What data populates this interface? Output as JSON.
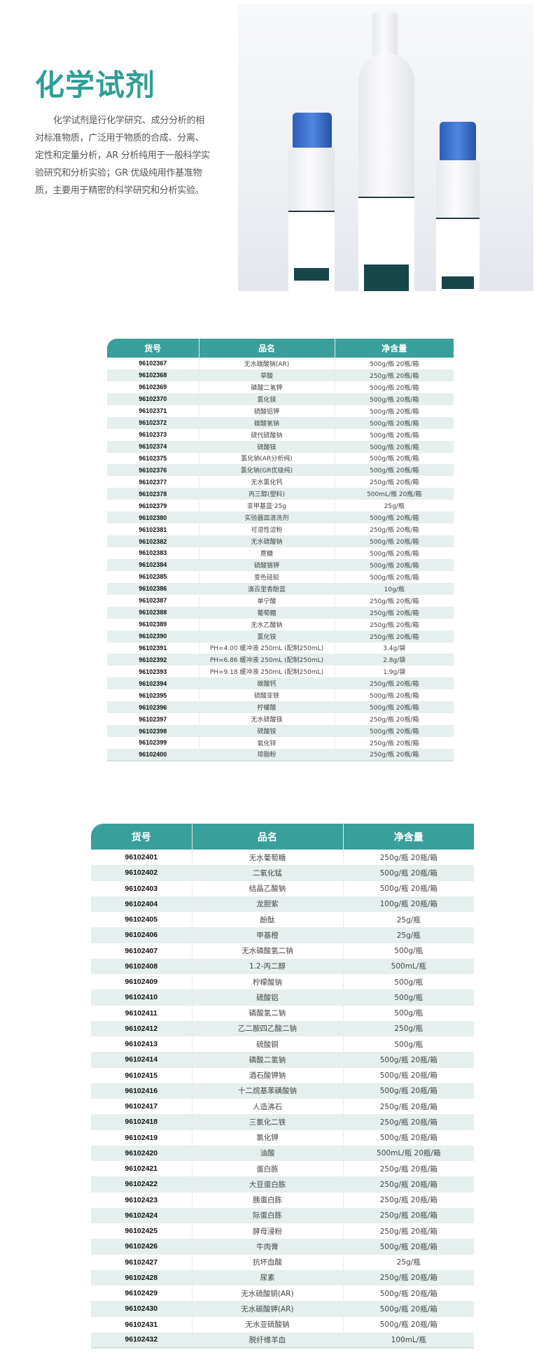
{
  "hero": {
    "title": "化学试剂",
    "description": "化学试剂是行化学研究、成分分析的相对标准物质，广泛用于物质的合成、分离、定性和定量分析，AR 分析纯用于一般科学实验研究和分析实验；GR 优级纯用作基准物质，主要用于精密的科学研究和分析实验。",
    "image": "reagent-bottles-photo",
    "colors": {
      "accent": "#389f9b",
      "title": "#2f9e97",
      "cap": "#3a6fcf",
      "row_alt": "#e5efee"
    }
  },
  "table1": {
    "headers": [
      "货号",
      "品名",
      "净含量"
    ],
    "rows": [
      [
        "96102367",
        "无水碳酸钠(AR)",
        "500g/瓶  20瓶/箱"
      ],
      [
        "96102368",
        "草酸",
        "250g/瓶  20瓶/箱"
      ],
      [
        "96102369",
        "磷酸二氢钾",
        "500g/瓶  20瓶/箱"
      ],
      [
        "96102370",
        "氯化镁",
        "500g/瓶  20瓶/箱"
      ],
      [
        "96102371",
        "硫酸铝钾",
        "500g/瓶  20瓶/箱"
      ],
      [
        "96102372",
        "碳酸氢钠",
        "500g/瓶  20瓶/箱"
      ],
      [
        "96102373",
        "硫代硫酸钠",
        "500g/瓶  20瓶/箱"
      ],
      [
        "96102374",
        "硫酸镁",
        "500g/瓶  20瓶/箱"
      ],
      [
        "96102375",
        "氯化钠(AR分析纯)",
        "500g/瓶  20瓶/箱"
      ],
      [
        "96102376",
        "氯化钠(GR优级纯)",
        "500g/瓶  20瓶/箱"
      ],
      [
        "96102377",
        "无水氯化钙",
        "250g/瓶  20瓶/箱"
      ],
      [
        "96102378",
        "丙三醇(塑料)",
        "500mL/瓶  20瓶/箱"
      ],
      [
        "96102379",
        "亚甲基蓝 25g",
        "25g/瓶"
      ],
      [
        "96102380",
        "实验器皿清洗剂",
        "500g/瓶  20瓶/箱"
      ],
      [
        "96102381",
        "可溶性淀粉",
        "250g/瓶  20瓶/箱"
      ],
      [
        "96102382",
        "无水硫酸钠",
        "500g/瓶  20瓶/箱"
      ],
      [
        "96102383",
        "蔗糖",
        "500g/瓶  20瓶/箱"
      ],
      [
        "96102384",
        "硫酸铬钾",
        "500g/瓶  20瓶/箱"
      ],
      [
        "96102385",
        "变色硅胶",
        "500g/瓶  20瓶/箱"
      ],
      [
        "96102386",
        "溴百里香酚蓝",
        "10g/瓶"
      ],
      [
        "96102387",
        "单宁酸",
        "250g/瓶 20瓶/箱"
      ],
      [
        "96102388",
        "葡萄糖",
        "250g/瓶  20瓶/箱"
      ],
      [
        "96102389",
        "无水乙酸钠",
        "250g/瓶  20瓶/箱"
      ],
      [
        "96102390",
        "氯化铵",
        "250g/瓶  20瓶/箱"
      ],
      [
        "96102391",
        "PH=4.00 缓冲液 250mL (配制250mL)",
        "3.4g/袋"
      ],
      [
        "96102392",
        "PH=6.86 缓冲液 250mL (配制250mL)",
        "2.8g/袋"
      ],
      [
        "96102393",
        "PH=9.18 缓冲液 250mL (配制250mL)",
        "1.9g/袋"
      ],
      [
        "96102394",
        "碳酸钙",
        "250g/瓶  20瓶/箱"
      ],
      [
        "96102395",
        "硫酸亚铁",
        "500g/瓶  20瓶/箱"
      ],
      [
        "96102396",
        "柠檬酸",
        "500g/瓶  20瓶/箱"
      ],
      [
        "96102397",
        "无水硫酸镁",
        "250g/瓶  20瓶/箱"
      ],
      [
        "96102398",
        "硫酸铵",
        "500g/瓶  20瓶/箱"
      ],
      [
        "96102399",
        "氧化锌",
        "250g/瓶  20瓶/箱"
      ],
      [
        "96102400",
        "琼脂粉",
        "250g/瓶  20瓶/箱"
      ]
    ]
  },
  "table2": {
    "headers": [
      "货号",
      "品名",
      "净含量"
    ],
    "rows": [
      [
        "96102401",
        "无水葡萄糖",
        "250g/瓶  20瓶/箱"
      ],
      [
        "96102402",
        "二氧化锰",
        "500g/瓶  20瓶/箱"
      ],
      [
        "96102403",
        "结晶乙酸钠",
        "500g/瓶  20瓶/箱"
      ],
      [
        "96102404",
        "龙胆紫",
        "100g/瓶  20瓶/箱"
      ],
      [
        "96102405",
        "酚酞",
        "25g/瓶"
      ],
      [
        "96102406",
        "甲基橙",
        "25g/瓶"
      ],
      [
        "96102407",
        "无水磷酸氢二钠",
        "500g/瓶"
      ],
      [
        "96102408",
        "1.2-丙二醇",
        "500mL/瓶"
      ],
      [
        "96102409",
        "柠檬酸钠",
        "500g/瓶"
      ],
      [
        "96102410",
        "硫酸铝",
        "500g/瓶"
      ],
      [
        "96102411",
        "磷酸氢二钠",
        "500g/瓶"
      ],
      [
        "96102412",
        "乙二胺四乙酸二钠",
        "250g/瓶"
      ],
      [
        "96102413",
        "硫酸铜",
        "500g/瓶"
      ],
      [
        "96102414",
        "磷酸二氢钠",
        "500g/瓶 20瓶/箱"
      ],
      [
        "96102415",
        "酒石酸钾钠",
        "500g/瓶 20瓶/箱"
      ],
      [
        "96102416",
        "十二烷基苯磺酸钠",
        "500g/瓶 20瓶/箱"
      ],
      [
        "96102417",
        "人造沸石",
        "250g/瓶 20瓶/箱"
      ],
      [
        "96102418",
        "三氯化二铁",
        "250g/瓶  20瓶/箱"
      ],
      [
        "96102419",
        "氯化钾",
        "500g/瓶  20瓶/箱"
      ],
      [
        "96102420",
        "油酸",
        "500mL/瓶  20瓶/箱"
      ],
      [
        "96102421",
        "蛋白胨",
        "250g/瓶  20瓶/箱"
      ],
      [
        "96102422",
        "大豆蛋白胨",
        "250g/瓶  20瓶/箱"
      ],
      [
        "96102423",
        "胰蛋白胨",
        "250g/瓶  20瓶/箱"
      ],
      [
        "96102424",
        "际蛋白胨",
        "250g/瓶  20瓶/箱"
      ],
      [
        "96102425",
        "酵母浸粉",
        "250g/瓶  20瓶/箱"
      ],
      [
        "96102426",
        "牛肉膏",
        "500g/瓶 20瓶/箱"
      ],
      [
        "96102427",
        "抗坏血酸",
        "25g/瓶"
      ],
      [
        "96102428",
        "尿素",
        "250g/瓶  20瓶/箱"
      ],
      [
        "96102429",
        "无水硫酸铜(AR)",
        "500g/瓶  20瓶/箱"
      ],
      [
        "96102430",
        "无水碳酸钾(AR)",
        "500g/瓶  20瓶/箱"
      ],
      [
        "96102431",
        "无水亚硫酸钠",
        "500g/瓶  20瓶/箱"
      ],
      [
        "96102432",
        "脱纤维羊血",
        "100mL/瓶"
      ]
    ]
  }
}
